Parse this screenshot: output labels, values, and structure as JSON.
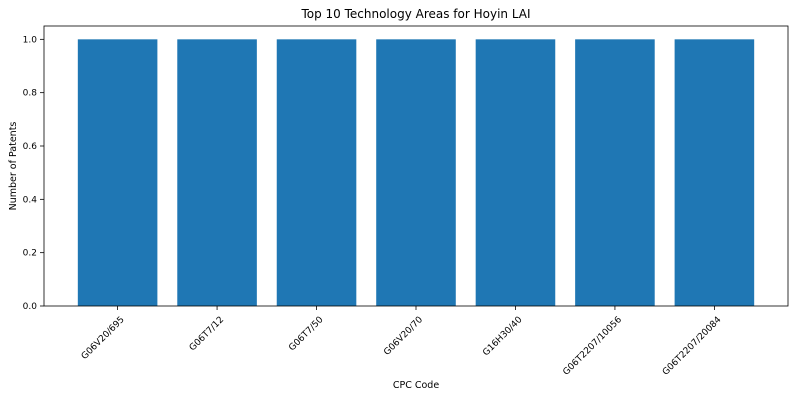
{
  "chart_data": {
    "type": "bar",
    "title": "Top 10 Technology Areas for Hoyin LAI",
    "xlabel": "CPC Code",
    "ylabel": "Number of Patents",
    "categories": [
      "G06V20/695",
      "G06T7/12",
      "G06T7/50",
      "G06V20/70",
      "G16H30/40",
      "G06T2207/10056",
      "G06T2207/20084"
    ],
    "values": [
      1,
      1,
      1,
      1,
      1,
      1,
      1
    ],
    "ylim": [
      0,
      1.05
    ],
    "yticks": [
      "0.0",
      "0.2",
      "0.4",
      "0.6",
      "0.8",
      "1.0"
    ],
    "grid": false,
    "bar_color": "#1f77b4",
    "x_tick_rotation": "45"
  }
}
